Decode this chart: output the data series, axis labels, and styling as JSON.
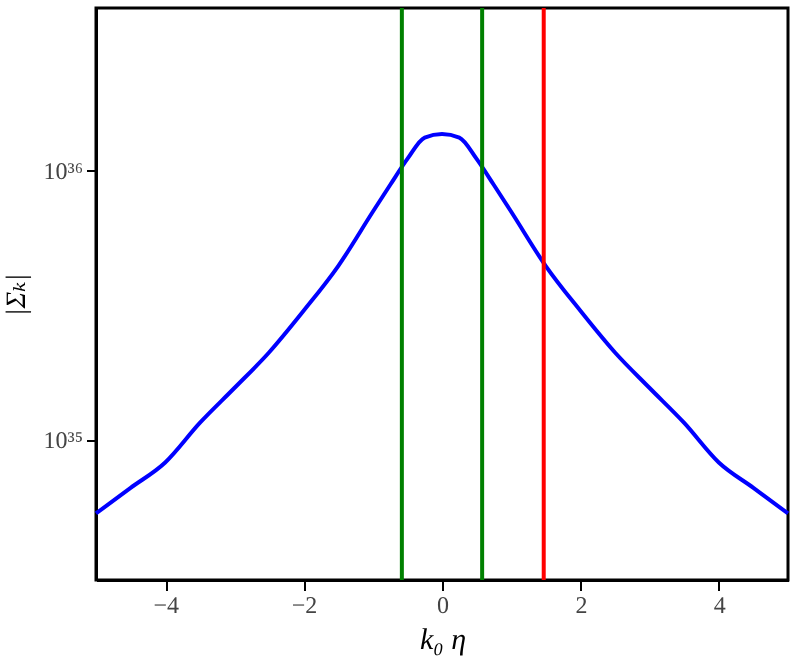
{
  "chart_data": {
    "type": "line",
    "xlabel": "k₀ η",
    "ylabel": "|Σₖ|",
    "log": "y",
    "x": [
      -5,
      -4.5,
      -4,
      -3.5,
      -3,
      -2.5,
      -2,
      -1.5,
      -1,
      -0.75,
      -0.5,
      -0.25,
      0,
      0.25,
      0.5,
      0.75,
      1,
      1.5,
      2,
      2.5,
      3,
      3.5,
      4,
      4.5,
      5
    ],
    "series": [
      {
        "color": "#0000ff",
        "values": [
          5.3e+34,
          6.6e+34,
          8.2e+34,
          1.15e+35,
          1.55e+35,
          2.1e+35,
          3e+35,
          4.4e+35,
          7e+35,
          8.8e+35,
          1.1e+36,
          1.32e+36,
          1.36e+36,
          1.32e+36,
          1.1e+36,
          8.8e+35,
          7e+35,
          4.4e+35,
          3e+35,
          2.1e+35,
          1.55e+35,
          1.15e+35,
          8.2e+34,
          6.6e+34,
          5.3e+34
        ]
      }
    ],
    "xlim": [
      -5,
      5
    ],
    "xticks": [
      {
        "value": -4,
        "label": "−4"
      },
      {
        "value": -2,
        "label": "−2"
      },
      0,
      2,
      4
    ],
    "ylim": [
      3e+34,
      4e+36
    ],
    "yticks": [
      {
        "value": 1e+35,
        "label": "10³⁵"
      },
      {
        "value": 1e+36,
        "label": "10³⁶"
      }
    ],
    "ref_lines": [
      {
        "axis": "x",
        "value": -0.58,
        "color": "#008000"
      },
      {
        "axis": "x",
        "value": 0.58,
        "color": "#008000"
      },
      {
        "axis": "x",
        "value": 1.47,
        "color": "#ff0000"
      }
    ],
    "grid": false
  }
}
